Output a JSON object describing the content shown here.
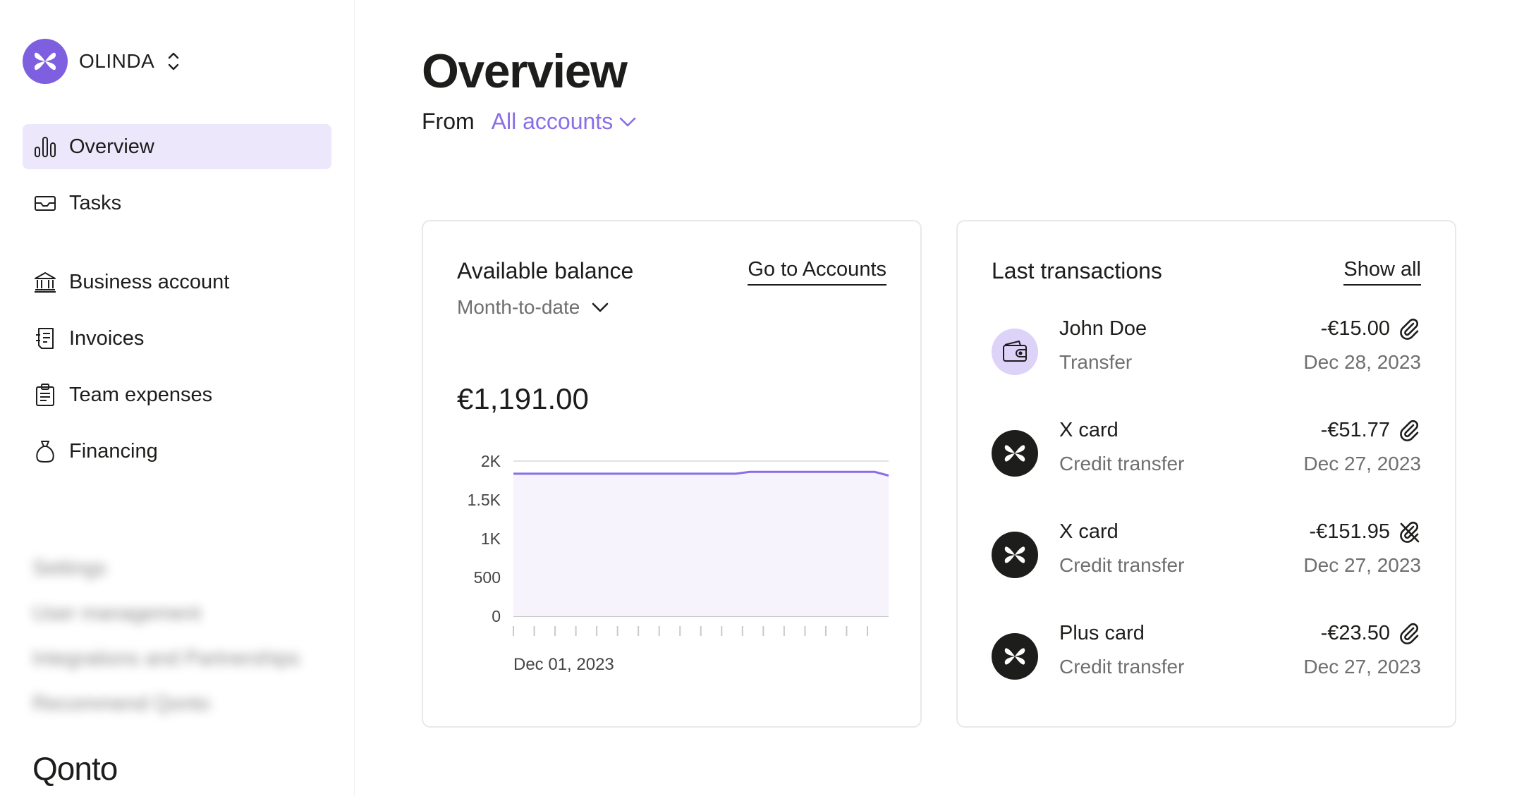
{
  "org": {
    "name": "OLINDA",
    "accent": "#7e5fdf"
  },
  "nav": {
    "overview": "Overview",
    "tasks": "Tasks",
    "business_account": "Business account",
    "invoices": "Invoices",
    "team_expenses": "Team expenses",
    "financing": "Financing"
  },
  "nav_blurred": {
    "settings": "Settings",
    "user_management": "User management",
    "integrations": "Integrations and Partnerships",
    "recommend": "Recommend Qonto"
  },
  "brand": "Qonto",
  "header": {
    "title": "Overview",
    "from_label": "From",
    "account_filter": "All accounts"
  },
  "balance_card": {
    "title": "Available balance",
    "link": "Go to Accounts",
    "period": "Month-to-date",
    "amount": "€1,191.00"
  },
  "chart_data": {
    "type": "area",
    "title": "",
    "xlabel": "",
    "ylabel": "",
    "ylim": [
      0,
      2000
    ],
    "yticks": [
      0,
      500,
      1000,
      1500,
      2000
    ],
    "ytick_labels": [
      "0",
      "500",
      "1K",
      "1.5K",
      "2K"
    ],
    "x_label_first": "Dec 01, 2023",
    "x_tick_count": 18,
    "series": [
      {
        "values": [
          1837,
          1837,
          1837,
          1837,
          1837,
          1837,
          1837,
          1837,
          1837,
          1837,
          1837,
          1837,
          1837,
          1837,
          1837,
          1837,
          1837,
          1861,
          1861,
          1861,
          1861,
          1861,
          1861,
          1861,
          1861,
          1861,
          1861,
          1814
        ]
      }
    ],
    "line_color": "#8a6de8",
    "fill_color": "#f6f3fd",
    "grid": true
  },
  "transactions_card": {
    "title": "Last transactions",
    "link": "Show all",
    "items": [
      {
        "name": "John Doe",
        "type": "Transfer",
        "amount": "-€15.00",
        "date": "Dec 28, 2023",
        "avatar": "wallet-icon",
        "attachment": "paperclip-icon"
      },
      {
        "name": "X card",
        "type": "Credit transfer",
        "amount": "-€51.77",
        "date": "Dec 27, 2023",
        "avatar": "card-brand-icon",
        "attachment": "paperclip-icon"
      },
      {
        "name": "X card",
        "type": "Credit transfer",
        "amount": "-€151.95",
        "date": "Dec 27, 2023",
        "avatar": "card-brand-icon",
        "attachment": "paperclip-off-icon"
      },
      {
        "name": "Plus card",
        "type": "Credit transfer",
        "amount": "-€23.50",
        "date": "Dec 27, 2023",
        "avatar": "card-brand-icon",
        "attachment": "paperclip-icon"
      }
    ]
  }
}
